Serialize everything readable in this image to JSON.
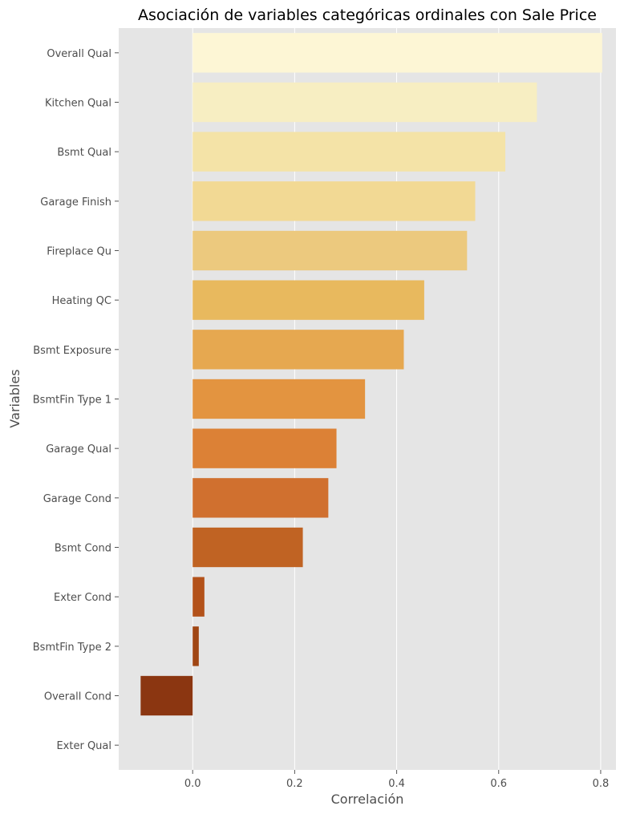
{
  "chart_data": {
    "type": "bar",
    "orientation": "horizontal",
    "title": "Asociación de variables categóricas ordinales con Sale Price",
    "xlabel": "Correlación",
    "ylabel": "Variables",
    "xlim": [
      -0.145,
      0.83
    ],
    "xticks": [
      0.0,
      0.2,
      0.4,
      0.6,
      0.8
    ],
    "xtick_labels": [
      "0.0",
      "0.2",
      "0.4",
      "0.6",
      "0.8"
    ],
    "grid": true,
    "style": "ggplot",
    "colormap": "YlOrBr",
    "categories": [
      "Overall Qual",
      "Kitchen Qual",
      "Bsmt Qual",
      "Garage Finish",
      "Fireplace Qu",
      "Heating QC",
      "Bsmt Exposure",
      "BsmtFin Type 1",
      "Garage Qual",
      "Garage Cond",
      "Bsmt Cond",
      "Exter Cond",
      "BsmtFin Type 2",
      "Overall Cond",
      "Exter Qual"
    ],
    "values": [
      0.803,
      0.675,
      0.613,
      0.554,
      0.538,
      0.454,
      0.414,
      0.338,
      0.282,
      0.266,
      0.216,
      0.023,
      0.012,
      -0.102,
      null
    ],
    "colors": [
      "#fdf6d5",
      "#f7eec2",
      "#f4e3a7",
      "#f2d994",
      "#ecc97e",
      "#e8b95e",
      "#e6a850",
      "#e39440",
      "#dc8136",
      "#d0702f",
      "#c06323",
      "#b3521a",
      "#a04614",
      "#8b3611",
      "#7a2e0c"
    ]
  }
}
